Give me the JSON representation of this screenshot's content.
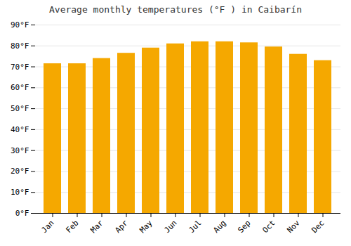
{
  "chart_data": {
    "type": "bar",
    "title": "Average monthly temperatures (°F ) in Caibarín",
    "categories": [
      "Jan",
      "Feb",
      "Mar",
      "Apr",
      "May",
      "Jun",
      "Jul",
      "Aug",
      "Sep",
      "Oct",
      "Nov",
      "Dec"
    ],
    "values": [
      71.5,
      71.5,
      74,
      76.5,
      79,
      81,
      82,
      82,
      81.5,
      79.5,
      76,
      73
    ],
    "color": "#F5A800",
    "ylim": [
      0,
      90
    ],
    "yticks": [
      {
        "value": 0,
        "label": "0°F"
      },
      {
        "value": 10,
        "label": "10°F"
      },
      {
        "value": 20,
        "label": "20°F"
      },
      {
        "value": 30,
        "label": "30°F"
      },
      {
        "value": 40,
        "label": "40°F"
      },
      {
        "value": 50,
        "label": "50°F"
      },
      {
        "value": 60,
        "label": "60°F"
      },
      {
        "value": 70,
        "label": "70°F"
      },
      {
        "value": 80,
        "label": "80°F"
      },
      {
        "value": 90,
        "label": "90°F"
      }
    ],
    "grid": true
  }
}
